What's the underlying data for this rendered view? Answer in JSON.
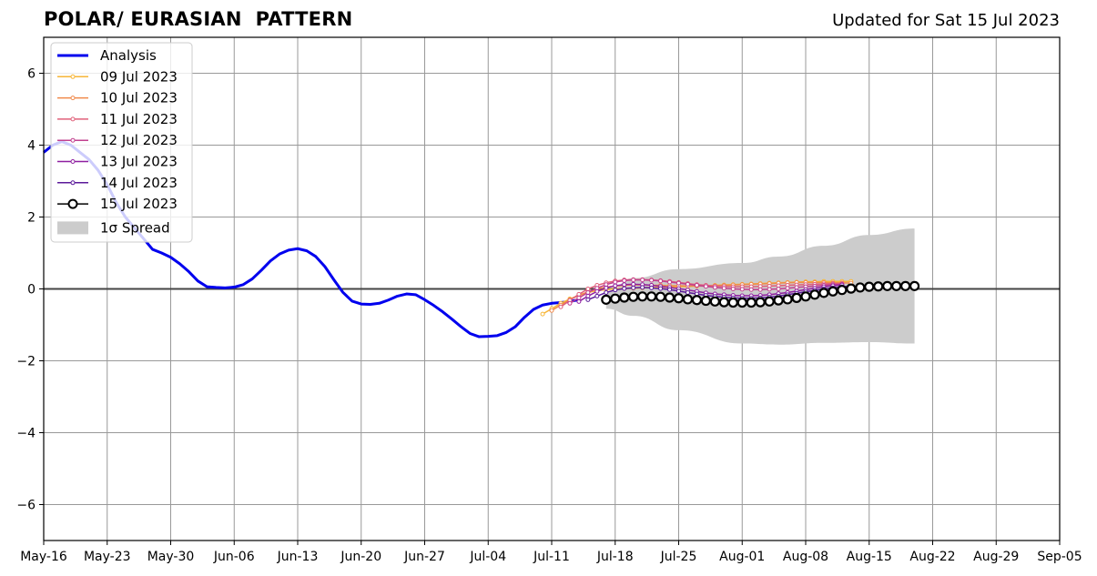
{
  "title": "POLAR/ EURASIAN  PATTERN",
  "subtitle": "Updated for Sat 15 Jul 2023",
  "colors": {
    "analysis": "#0000ee",
    "spread": "#cccccc",
    "grid": "#999999",
    "zero_line": "#444444"
  },
  "chart_data": {
    "type": "line",
    "title": "POLAR/ EURASIAN  PATTERN",
    "xlabel": "",
    "ylabel": "",
    "grid": true,
    "legend_position": "top-left",
    "xlim": [
      "2023-05-16",
      "2023-09-05"
    ],
    "ylim": [
      -7,
      7
    ],
    "xticks": [
      "May-16",
      "May-23",
      "May-30",
      "Jun-06",
      "Jun-13",
      "Jun-20",
      "Jun-27",
      "Jul-04",
      "Jul-11",
      "Jul-18",
      "Jul-25",
      "Aug-01",
      "Aug-08",
      "Aug-15",
      "Aug-22",
      "Aug-29",
      "Sep-05"
    ],
    "yticks": [
      6,
      4,
      2,
      0,
      -2,
      -4,
      -6
    ],
    "ytick_labels": [
      "6",
      "4",
      "2",
      "0",
      "−2",
      "−4",
      "−6"
    ],
    "series": [
      {
        "name": "Analysis",
        "color": "#0000ee",
        "marker": "none",
        "start": "2023-05-16",
        "values": [
          3.8,
          4.0,
          4.1,
          4.0,
          3.8,
          3.6,
          3.3,
          2.9,
          2.4,
          2.0,
          1.7,
          1.4,
          1.1,
          1.0,
          0.88,
          0.7,
          0.48,
          0.22,
          0.06,
          0.04,
          0.03,
          0.05,
          0.12,
          0.28,
          0.52,
          0.78,
          0.97,
          1.08,
          1.12,
          1.06,
          0.9,
          0.62,
          0.25,
          -0.1,
          -0.34,
          -0.42,
          -0.43,
          -0.4,
          -0.31,
          -0.2,
          -0.14,
          -0.16,
          -0.3,
          -0.46,
          -0.64,
          -0.84,
          -1.05,
          -1.24,
          -1.33,
          -1.32,
          -1.3,
          -1.21,
          -1.05,
          -0.79,
          -0.57,
          -0.45,
          -0.4,
          -0.38,
          -0.35,
          -0.3
        ]
      },
      {
        "name": "09 Jul 2023",
        "color": "#f7b637",
        "marker": "dot",
        "start": "2023-07-10",
        "values": [
          -0.7,
          -0.55,
          -0.4,
          -0.28,
          -0.18,
          -0.1,
          -0.05,
          -0.02,
          0.0,
          0.01,
          0.02,
          0.03,
          0.04,
          0.04,
          0.05,
          0.06,
          0.07,
          0.08,
          0.09,
          0.1,
          0.11,
          0.12,
          0.13,
          0.14,
          0.15,
          0.16,
          0.17,
          0.18,
          0.19,
          0.2,
          0.2,
          0.21,
          0.21,
          0.21,
          0.21
        ]
      },
      {
        "name": "10 Jul 2023",
        "color": "#f08a4b",
        "marker": "dot",
        "start": "2023-07-11",
        "values": [
          -0.6,
          -0.45,
          -0.3,
          -0.18,
          -0.08,
          0.0,
          0.05,
          0.08,
          0.1,
          0.11,
          0.11,
          0.1,
          0.1,
          0.09,
          0.09,
          0.08,
          0.08,
          0.08,
          0.09,
          0.1,
          0.11,
          0.12,
          0.13,
          0.14,
          0.15,
          0.16,
          0.17,
          0.18,
          0.18,
          0.18,
          0.18,
          0.17,
          0.17,
          0.16
        ]
      },
      {
        "name": "11 Jul 2023",
        "color": "#e0607a",
        "marker": "dot",
        "start": "2023-07-12",
        "values": [
          -0.5,
          -0.32,
          -0.15,
          0.0,
          0.1,
          0.17,
          0.22,
          0.25,
          0.26,
          0.26,
          0.25,
          0.23,
          0.21,
          0.18,
          0.15,
          0.12,
          0.1,
          0.08,
          0.07,
          0.06,
          0.06,
          0.06,
          0.07,
          0.08,
          0.09,
          0.1,
          0.11,
          0.12,
          0.13,
          0.14,
          0.15,
          0.15
        ]
      },
      {
        "name": "12 Jul 2023",
        "color": "#c2408f",
        "marker": "dot",
        "start": "2023-07-13",
        "values": [
          -0.4,
          -0.25,
          -0.1,
          0.02,
          0.12,
          0.19,
          0.23,
          0.25,
          0.25,
          0.24,
          0.22,
          0.19,
          0.16,
          0.13,
          0.1,
          0.07,
          0.04,
          0.02,
          0.0,
          -0.01,
          -0.02,
          -0.02,
          -0.01,
          0.0,
          0.02,
          0.04,
          0.06,
          0.08,
          0.1,
          0.12,
          0.13
        ]
      },
      {
        "name": "13 Jul 2023",
        "color": "#8e1fa0",
        "marker": "dot",
        "start": "2023-07-14",
        "values": [
          -0.35,
          -0.2,
          -0.07,
          0.03,
          0.09,
          0.12,
          0.13,
          0.12,
          0.1,
          0.07,
          0.04,
          0.01,
          -0.03,
          -0.07,
          -0.11,
          -0.14,
          -0.16,
          -0.18,
          -0.19,
          -0.19,
          -0.18,
          -0.16,
          -0.13,
          -0.1,
          -0.06,
          -0.02,
          0.02,
          0.06,
          0.09,
          0.11
        ]
      },
      {
        "name": "14 Jul 2023",
        "color": "#5b1a9a",
        "marker": "dot",
        "start": "2023-07-15",
        "values": [
          -0.3,
          -0.2,
          -0.1,
          -0.03,
          0.01,
          0.03,
          0.04,
          0.03,
          0.01,
          -0.02,
          -0.06,
          -0.1,
          -0.14,
          -0.18,
          -0.21,
          -0.23,
          -0.25,
          -0.26,
          -0.26,
          -0.25,
          -0.23,
          -0.2,
          -0.16,
          -0.12,
          -0.08,
          -0.04,
          0.0,
          0.03,
          0.06,
          0.08
        ]
      },
      {
        "name": "15 Jul 2023",
        "color": "#000000",
        "marker": "circle",
        "start": "2023-07-17",
        "values": [
          -0.3,
          -0.27,
          -0.24,
          -0.22,
          -0.21,
          -0.21,
          -0.22,
          -0.24,
          -0.26,
          -0.29,
          -0.31,
          -0.33,
          -0.35,
          -0.37,
          -0.38,
          -0.38,
          -0.38,
          -0.37,
          -0.35,
          -0.32,
          -0.29,
          -0.25,
          -0.21,
          -0.16,
          -0.11,
          -0.07,
          -0.03,
          0.01,
          0.04,
          0.06,
          0.07,
          0.08,
          0.08,
          0.08,
          0.08
        ]
      }
    ],
    "spread": {
      "name": "1σ Spread",
      "color": "#cccccc",
      "start": "2023-07-17",
      "end": "2023-08-20",
      "upper_dates": [
        "2023-07-17",
        "2023-07-20",
        "2023-07-25",
        "2023-08-01",
        "2023-08-05",
        "2023-08-10",
        "2023-08-15",
        "2023-08-20"
      ],
      "upper": [
        -0.1,
        0.3,
        0.55,
        0.72,
        0.9,
        1.2,
        1.5,
        1.68
      ],
      "lower_dates": [
        "2023-07-17",
        "2023-07-20",
        "2023-07-25",
        "2023-08-01",
        "2023-08-05",
        "2023-08-10",
        "2023-08-15",
        "2023-08-20"
      ],
      "lower": [
        -0.55,
        -0.75,
        -1.15,
        -1.52,
        -1.55,
        -1.5,
        -1.48,
        -1.52
      ]
    }
  }
}
